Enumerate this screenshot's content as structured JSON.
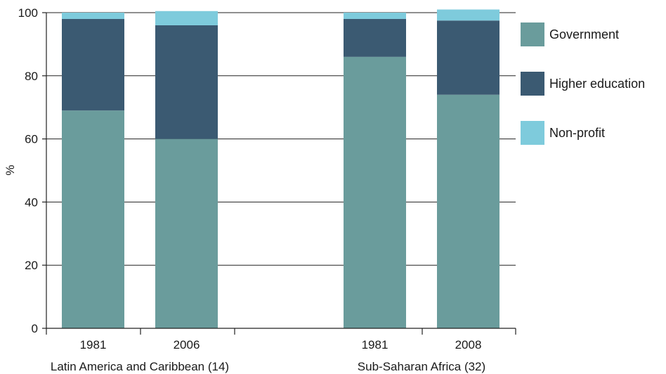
{
  "chart_data": {
    "type": "bar",
    "stacked": true,
    "ylabel": "%",
    "ylim": [
      0,
      100
    ],
    "yticks": [
      0,
      20,
      40,
      60,
      80,
      100
    ],
    "grid": true,
    "legend_position": "right",
    "groups": [
      {
        "label": "Latin America and Caribbean (14)",
        "categories": [
          "1981",
          "2006"
        ]
      },
      {
        "label": "Sub-Saharan Africa (32)",
        "categories": [
          "1981",
          "2008"
        ]
      }
    ],
    "series": [
      {
        "name": "Government",
        "color": "#6a9c9c",
        "values": [
          69,
          60,
          86,
          74
        ]
      },
      {
        "name": "Higher education",
        "color": "#3b5a72",
        "values": [
          29,
          36,
          12,
          23.5
        ]
      },
      {
        "name": "Non-profit",
        "color": "#7ecbdc",
        "values": [
          2,
          4.5,
          2,
          3.5
        ]
      }
    ]
  }
}
